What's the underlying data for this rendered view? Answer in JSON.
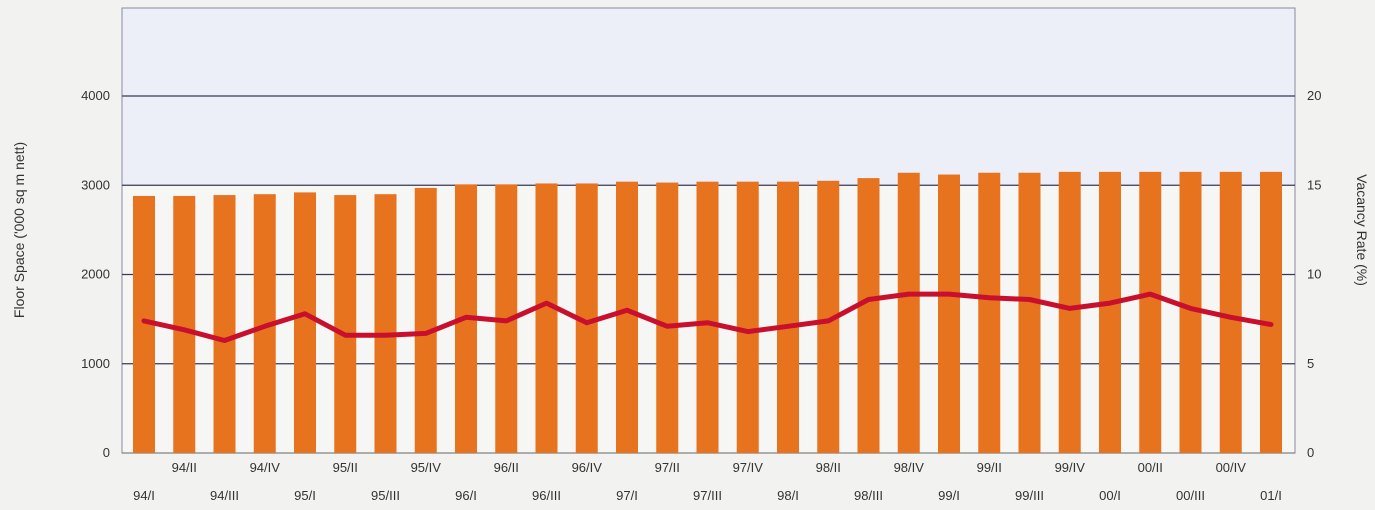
{
  "chart_data": {
    "type": "bar",
    "title": "",
    "categories": [
      "94/I",
      "94/II",
      "94/III",
      "94/IV",
      "95/I",
      "95/II",
      "95/III",
      "95/IV",
      "96/I",
      "96/II",
      "96/III",
      "96/IV",
      "97/I",
      "97/II",
      "97/III",
      "97/IV",
      "98/I",
      "98/II",
      "98/III",
      "98/IV",
      "99/I",
      "99/II",
      "99/III",
      "99/IV",
      "00/I",
      "00/II",
      "00/III",
      "00/IV",
      "01/I"
    ],
    "series": [
      {
        "name": "",
        "type": "bar",
        "axis": "left",
        "color": "#e8731f",
        "values": [
          2880,
          2880,
          2890,
          2900,
          2920,
          2890,
          2900,
          2970,
          3010,
          3010,
          3020,
          3020,
          3040,
          3030,
          3040,
          3040,
          3040,
          3050,
          3080,
          3140,
          3120,
          3140,
          3140,
          3150,
          3150,
          3150,
          3150,
          3150,
          3150
        ]
      },
      {
        "name": "",
        "type": "line",
        "axis": "right",
        "color": "#c8102e",
        "values": [
          7.4,
          6.9,
          6.3,
          7.1,
          7.8,
          6.6,
          6.6,
          6.7,
          7.6,
          7.4,
          8.4,
          7.3,
          8.0,
          7.1,
          7.3,
          6.8,
          7.1,
          7.4,
          8.6,
          8.9,
          8.9,
          8.7,
          8.6,
          8.1,
          8.4,
          8.9,
          8.1,
          7.6,
          7.2
        ]
      }
    ],
    "ylabel": "Floor Space ('000 sq m nett)",
    "ylabel_right": "Vacancy Rate (%)",
    "ylim": [
      0,
      5000
    ],
    "ylim_right": [
      0,
      25
    ],
    "yticks": [
      "0",
      "1000",
      "2000",
      "3000",
      "4000"
    ],
    "yticks_right": [
      "0",
      "5",
      "10",
      "15",
      "20"
    ],
    "grid": true,
    "colors": {
      "background": "#f2f2f0",
      "plot_upper": "#eceef8",
      "plot_lower": "#f6f6f4",
      "grid": "#3a3a55",
      "bar": "#e8731f",
      "line": "#c8102e"
    }
  }
}
